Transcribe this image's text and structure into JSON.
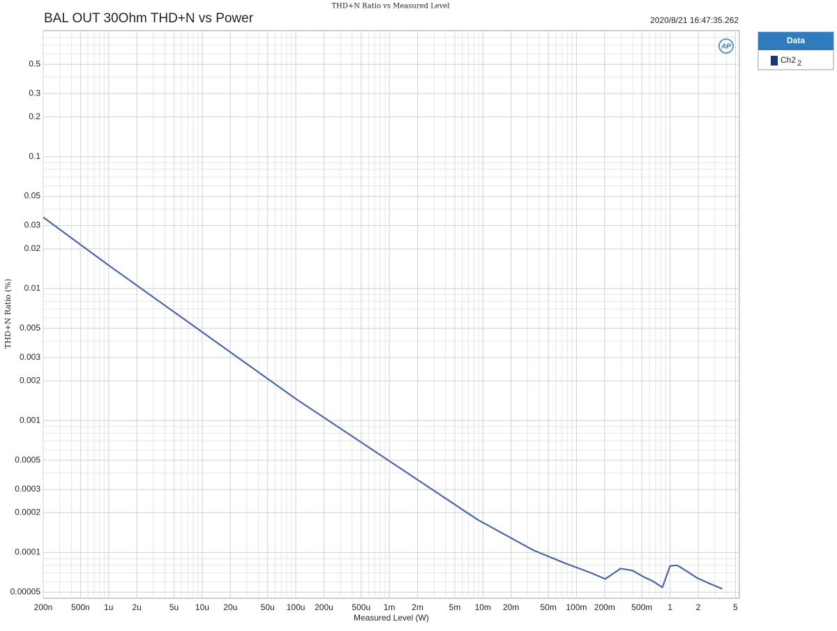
{
  "chart_data": {
    "type": "line",
    "super_title": "THD+N Ratio vs Measured Level",
    "title": "BAL OUT 30Ohm THD+N vs Power",
    "timestamp": "2020/8/21 16:47:35.262",
    "logo": "AP",
    "xlabel": "Measured Level (W)",
    "ylabel": "THD+N Ratio (%)",
    "xscale": "log",
    "yscale": "log",
    "grid": true,
    "legend_title": "Data",
    "legend_note": "2",
    "xlim": [
      2e-07,
      5.5
    ],
    "ylim": [
      4.5e-05,
      0.9
    ],
    "xticks": [
      {
        "value": 2e-07,
        "label": "200n"
      },
      {
        "value": 5e-07,
        "label": "500n"
      },
      {
        "value": 1e-06,
        "label": "1u"
      },
      {
        "value": 2e-06,
        "label": "2u"
      },
      {
        "value": 5e-06,
        "label": "5u"
      },
      {
        "value": 1e-05,
        "label": "10u"
      },
      {
        "value": 2e-05,
        "label": "20u"
      },
      {
        "value": 5e-05,
        "label": "50u"
      },
      {
        "value": 0.0001,
        "label": "100u"
      },
      {
        "value": 0.0002,
        "label": "200u"
      },
      {
        "value": 0.0005,
        "label": "500u"
      },
      {
        "value": 0.001,
        "label": "1m"
      },
      {
        "value": 0.002,
        "label": "2m"
      },
      {
        "value": 0.005,
        "label": "5m"
      },
      {
        "value": 0.01,
        "label": "10m"
      },
      {
        "value": 0.02,
        "label": "20m"
      },
      {
        "value": 0.05,
        "label": "50m"
      },
      {
        "value": 0.1,
        "label": "100m"
      },
      {
        "value": 0.2,
        "label": "200m"
      },
      {
        "value": 0.5,
        "label": "500m"
      },
      1,
      2,
      5
    ],
    "yticks": [
      0.5,
      0.3,
      0.2,
      0.1,
      0.05,
      0.03,
      0.02,
      0.01,
      0.005,
      0.003,
      0.002,
      0.001,
      0.0005,
      0.0003,
      0.0002,
      0.0001,
      5e-05
    ],
    "x": [
      2e-07,
      1e-06,
      0.0001,
      0.0088,
      0.0346,
      0.075,
      0.136,
      0.203,
      0.296,
      0.396,
      0.54,
      0.652,
      0.828,
      1.0,
      1.19,
      1.51,
      1.95,
      2.66,
      3.62
    ],
    "series": [
      {
        "name": "Ch2",
        "color": "#4a67a3",
        "legend_color": "#1b3675",
        "values": [
          0.0347,
          0.015,
          0.00146,
          0.000177,
          0.000104,
          8.3e-05,
          7.1e-05,
          6.3e-05,
          7.55e-05,
          7.3e-05,
          6.45e-05,
          6.07e-05,
          5.44e-05,
          7.9e-05,
          8e-05,
          7.2e-05,
          6.4e-05,
          5.8e-05,
          5.3e-05
        ]
      }
    ]
  }
}
